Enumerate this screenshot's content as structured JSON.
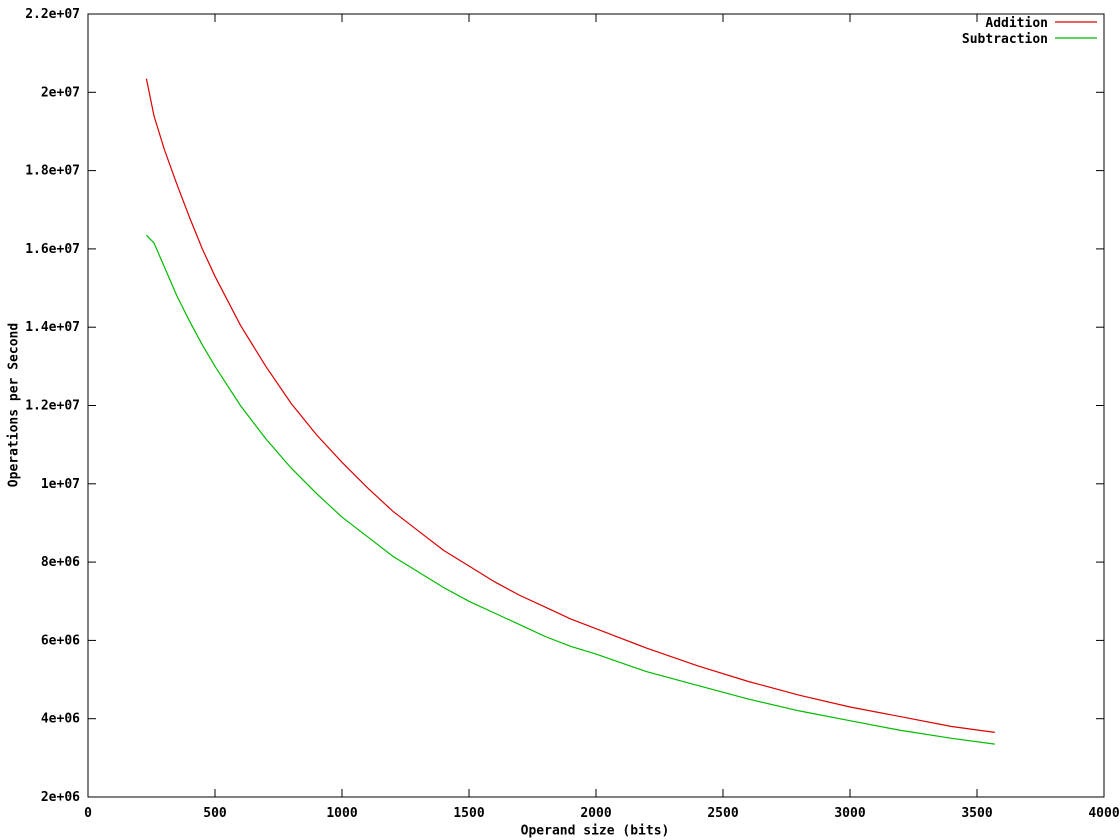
{
  "chart_data": {
    "type": "line",
    "title": "",
    "xlabel": "Operand size (bits)",
    "ylabel": "Operations per Second",
    "xlim": [
      0,
      4000
    ],
    "ylim": [
      2000000,
      22000000
    ],
    "grid": false,
    "background": "#ffffff",
    "axis_color": "#000000",
    "legend_position": "top-right-inside",
    "xticks": [
      0,
      500,
      1000,
      1500,
      2000,
      2500,
      3000,
      3500,
      4000
    ],
    "xtick_labels": [
      "0",
      "500",
      "1000",
      "1500",
      "2000",
      "2500",
      "3000",
      "3500",
      "4000"
    ],
    "yticks": [
      2000000,
      4000000,
      6000000,
      8000000,
      10000000,
      12000000,
      14000000,
      16000000,
      18000000,
      20000000,
      22000000
    ],
    "ytick_labels": [
      "2e+06",
      "4e+06",
      "6e+06",
      "8e+06",
      "1e+07",
      "1.2e+07",
      "1.4e+07",
      "1.6e+07",
      "1.8e+07",
      "2e+07",
      "2.2e+07"
    ],
    "series": [
      {
        "name": "Addition",
        "color": "#dd0000",
        "points": [
          [
            230,
            20350000
          ],
          [
            260,
            19400000
          ],
          [
            300,
            18550000
          ],
          [
            350,
            17650000
          ],
          [
            400,
            16800000
          ],
          [
            450,
            16000000
          ],
          [
            500,
            15300000
          ],
          [
            600,
            14050000
          ],
          [
            700,
            13000000
          ],
          [
            800,
            12050000
          ],
          [
            900,
            11250000
          ],
          [
            1000,
            10550000
          ],
          [
            1100,
            9900000
          ],
          [
            1200,
            9300000
          ],
          [
            1300,
            8800000
          ],
          [
            1400,
            8300000
          ],
          [
            1500,
            7900000
          ],
          [
            1600,
            7500000
          ],
          [
            1700,
            7150000
          ],
          [
            1800,
            6850000
          ],
          [
            1900,
            6550000
          ],
          [
            2000,
            6300000
          ],
          [
            2200,
            5800000
          ],
          [
            2400,
            5350000
          ],
          [
            2600,
            4950000
          ],
          [
            2800,
            4600000
          ],
          [
            3000,
            4300000
          ],
          [
            3200,
            4050000
          ],
          [
            3400,
            3800000
          ],
          [
            3570,
            3650000
          ]
        ]
      },
      {
        "name": "Subtraction",
        "color": "#00bb00",
        "points": [
          [
            230,
            16350000
          ],
          [
            260,
            16150000
          ],
          [
            300,
            15550000
          ],
          [
            350,
            14800000
          ],
          [
            400,
            14150000
          ],
          [
            450,
            13550000
          ],
          [
            500,
            13000000
          ],
          [
            600,
            12000000
          ],
          [
            700,
            11150000
          ],
          [
            800,
            10400000
          ],
          [
            900,
            9750000
          ],
          [
            1000,
            9150000
          ],
          [
            1100,
            8650000
          ],
          [
            1200,
            8150000
          ],
          [
            1300,
            7750000
          ],
          [
            1400,
            7350000
          ],
          [
            1500,
            7000000
          ],
          [
            1600,
            6700000
          ],
          [
            1700,
            6400000
          ],
          [
            1800,
            6100000
          ],
          [
            1900,
            5850000
          ],
          [
            2000,
            5650000
          ],
          [
            2200,
            5200000
          ],
          [
            2400,
            4850000
          ],
          [
            2600,
            4500000
          ],
          [
            2800,
            4200000
          ],
          [
            3000,
            3950000
          ],
          [
            3200,
            3700000
          ],
          [
            3400,
            3500000
          ],
          [
            3570,
            3350000
          ]
        ]
      }
    ]
  }
}
